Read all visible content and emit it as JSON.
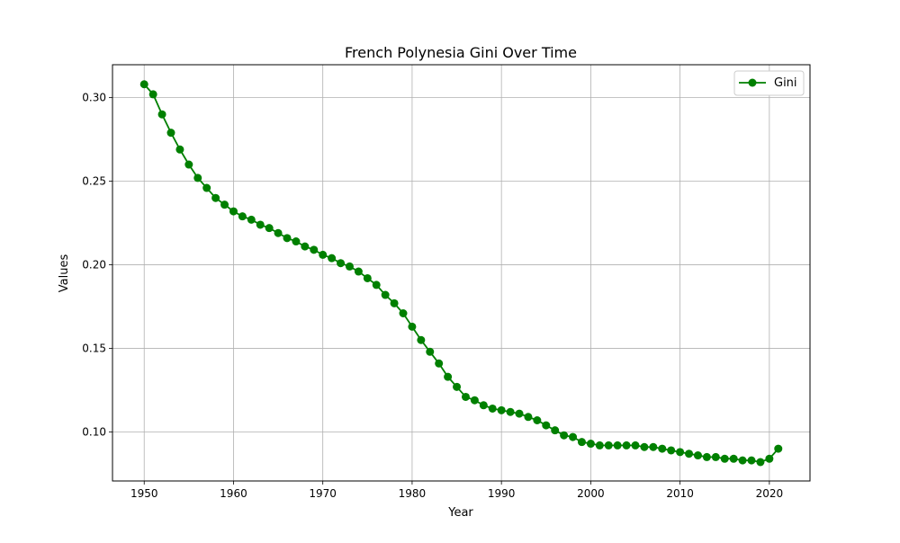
{
  "chart_data": {
    "type": "line",
    "title": "French Polynesia Gini Over Time",
    "xlabel": "Year",
    "ylabel": "Values",
    "xlim": [
      1946.45,
      2024.55
    ],
    "ylim": [
      0.0707,
      0.3197
    ],
    "xticks": [
      1950,
      1960,
      1970,
      1980,
      1990,
      2000,
      2010,
      2020
    ],
    "yticks": [
      0.1,
      0.15,
      0.2,
      0.25,
      0.3
    ],
    "grid": true,
    "legend_position": "top-right",
    "color": "#008000",
    "series": [
      {
        "name": "Gini",
        "marker": "circle",
        "x": [
          1950,
          1951,
          1952,
          1953,
          1954,
          1955,
          1956,
          1957,
          1958,
          1959,
          1960,
          1961,
          1962,
          1963,
          1964,
          1965,
          1966,
          1967,
          1968,
          1969,
          1970,
          1971,
          1972,
          1973,
          1974,
          1975,
          1976,
          1977,
          1978,
          1979,
          1980,
          1981,
          1982,
          1983,
          1984,
          1985,
          1986,
          1987,
          1988,
          1989,
          1990,
          1991,
          1992,
          1993,
          1994,
          1995,
          1996,
          1997,
          1998,
          1999,
          2000,
          2001,
          2002,
          2003,
          2004,
          2005,
          2006,
          2007,
          2008,
          2009,
          2010,
          2011,
          2012,
          2013,
          2014,
          2015,
          2016,
          2017,
          2018,
          2019,
          2020,
          2021
        ],
        "y": [
          0.308,
          0.302,
          0.29,
          0.279,
          0.269,
          0.26,
          0.252,
          0.246,
          0.24,
          0.236,
          0.232,
          0.229,
          0.227,
          0.224,
          0.222,
          0.219,
          0.216,
          0.214,
          0.211,
          0.209,
          0.206,
          0.204,
          0.201,
          0.199,
          0.196,
          0.192,
          0.188,
          0.182,
          0.177,
          0.171,
          0.163,
          0.155,
          0.148,
          0.141,
          0.133,
          0.127,
          0.121,
          0.119,
          0.116,
          0.114,
          0.113,
          0.112,
          0.111,
          0.109,
          0.107,
          0.104,
          0.101,
          0.098,
          0.097,
          0.094,
          0.093,
          0.092,
          0.092,
          0.092,
          0.092,
          0.092,
          0.091,
          0.091,
          0.09,
          0.089,
          0.088,
          0.087,
          0.086,
          0.085,
          0.085,
          0.084,
          0.084,
          0.083,
          0.083,
          0.082,
          0.084,
          0.09
        ]
      }
    ]
  }
}
